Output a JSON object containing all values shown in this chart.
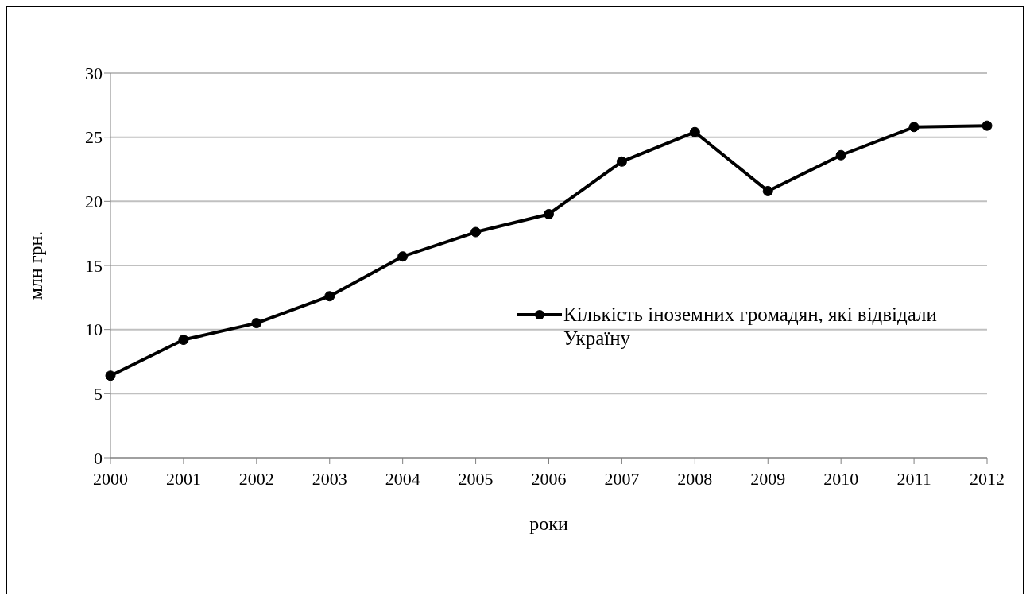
{
  "chart_data": {
    "type": "line",
    "xlabel": "роки",
    "ylabel": "млн грн.",
    "categories": [
      "2000",
      "2001",
      "2002",
      "2003",
      "2004",
      "2005",
      "2006",
      "2007",
      "2008",
      "2009",
      "2010",
      "2011",
      "2012"
    ],
    "series": [
      {
        "name": "Кількість іноземних громадян, які відвідали Україну",
        "color": "#000000",
        "values": [
          6.4,
          9.2,
          10.5,
          12.6,
          15.7,
          17.6,
          19.0,
          23.1,
          25.4,
          20.8,
          23.6,
          25.8,
          25.9
        ]
      }
    ],
    "ylim": [
      0,
      30
    ],
    "yticks": [
      0,
      5,
      10,
      15,
      20,
      25,
      30
    ],
    "grid": "y",
    "legend": "right",
    "marker": "circle",
    "line_style": "solid"
  }
}
